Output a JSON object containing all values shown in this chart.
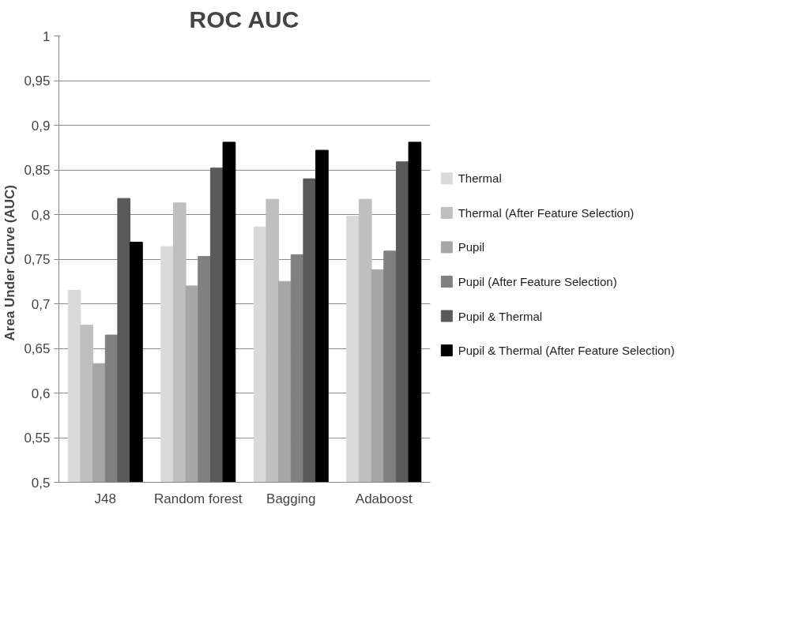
{
  "chart_data": {
    "type": "bar",
    "title": "ROC AUC",
    "ylabel": "Area  Under  Curve (AUC)",
    "categories": [
      "J48",
      "Random forest",
      "Bagging",
      "Adaboost"
    ],
    "series": [
      {
        "name": "Thermal",
        "color": "#d9d9d9",
        "values": [
          0.715,
          0.764,
          0.786,
          0.798
        ]
      },
      {
        "name": "Thermal (After Feature Selection)",
        "color": "#bfbfbf",
        "values": [
          0.676,
          0.813,
          0.817,
          0.817
        ]
      },
      {
        "name": "Pupil",
        "color": "#a6a6a6",
        "values": [
          0.633,
          0.72,
          0.725,
          0.738
        ]
      },
      {
        "name": "Pupil (After Feature Selection)",
        "color": "#808080",
        "values": [
          0.665,
          0.753,
          0.755,
          0.759
        ]
      },
      {
        "name": "Pupil & Thermal",
        "color": "#595959",
        "values": [
          0.818,
          0.852,
          0.84,
          0.859
        ]
      },
      {
        "name": "Pupil & Thermal (After Feature Selection)",
        "color": "#000000",
        "values": [
          0.769,
          0.881,
          0.872,
          0.881
        ]
      }
    ],
    "ylim": [
      0.5,
      1
    ],
    "yticks": [
      {
        "value": 0.5,
        "label": "0,5"
      },
      {
        "value": 0.55,
        "label": "0,55"
      },
      {
        "value": 0.6,
        "label": "0,6"
      },
      {
        "value": 0.65,
        "label": "0,65"
      },
      {
        "value": 0.7,
        "label": "0,7"
      },
      {
        "value": 0.75,
        "label": "0,75"
      },
      {
        "value": 0.8,
        "label": "0,8"
      },
      {
        "value": 0.85,
        "label": "0,85"
      },
      {
        "value": 0.9,
        "label": "0,9"
      },
      {
        "value": 0.95,
        "label": "0,95"
      },
      {
        "value": 1,
        "label": "1"
      }
    ],
    "grid": "y",
    "legend": "right"
  }
}
